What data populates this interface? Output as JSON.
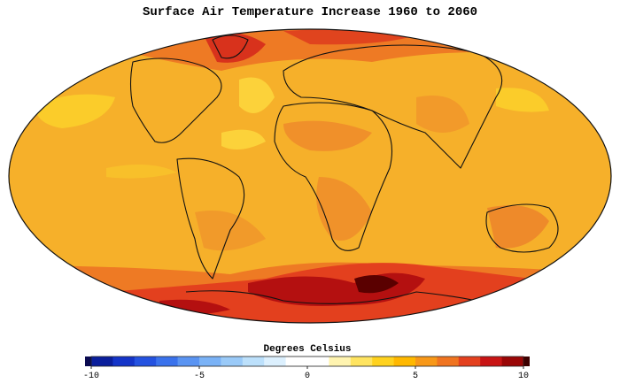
{
  "title": "Surface Air Temperature Increase 1960 to 2060",
  "colorbar": {
    "label": "Degrees Celsius",
    "lim": [
      -10,
      10
    ],
    "ticks": [
      -10,
      -5,
      0,
      5,
      10
    ],
    "under_color": "#0a0a50",
    "over_color": "#3c0000",
    "colors": [
      "#0a1e9c",
      "#1434c8",
      "#2452e0",
      "#3a72ec",
      "#5a94f2",
      "#7ab2f6",
      "#9acaf8",
      "#bce0fb",
      "#dcf0fe",
      "#ffffff",
      "#ffffff",
      "#fff4b0",
      "#ffe460",
      "#ffd21e",
      "#ffb800",
      "#f89818",
      "#f07420",
      "#e4401e",
      "#c81414",
      "#9a0606"
    ]
  }
}
